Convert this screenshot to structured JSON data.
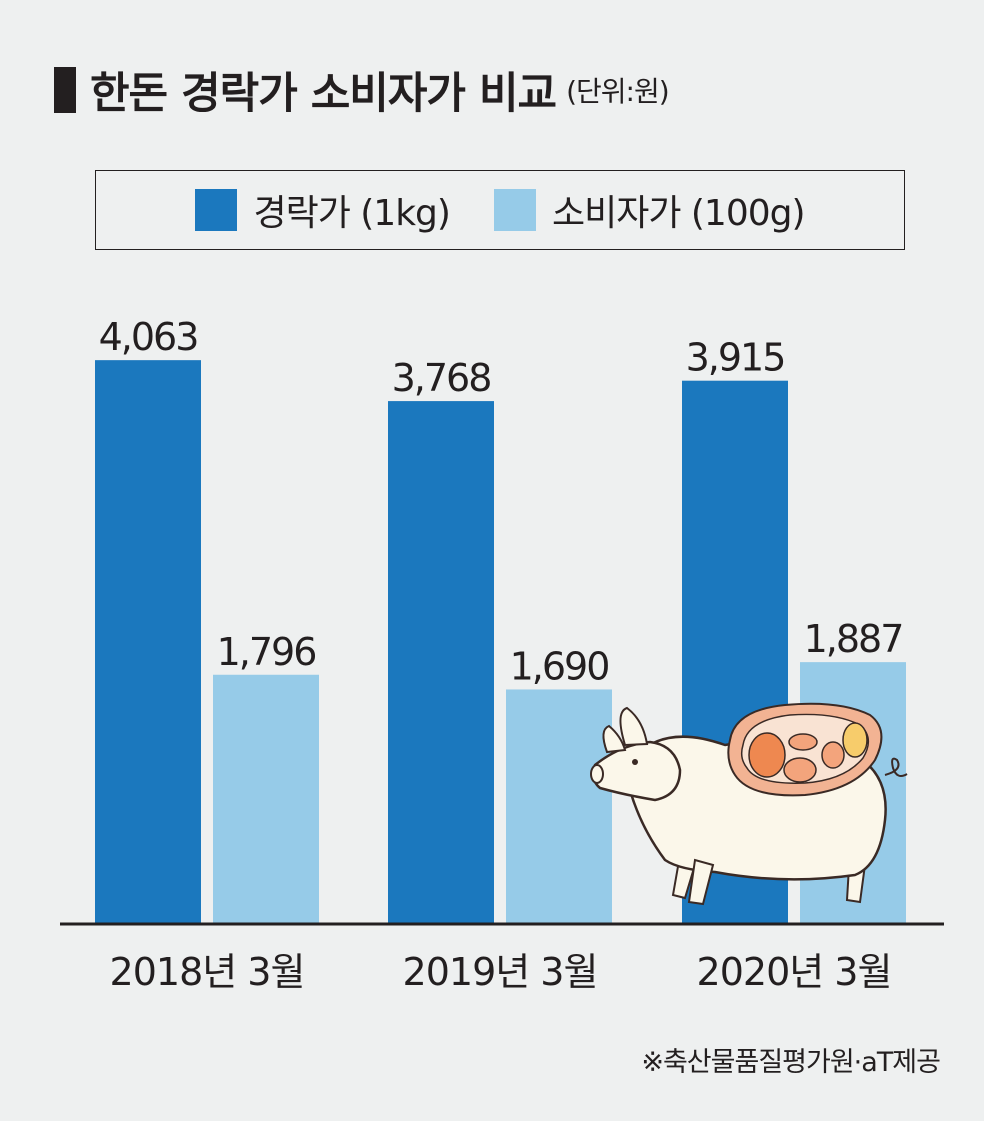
{
  "header": {
    "title": "한돈 경락가 소비자가 비교",
    "unit": "(단위:원)"
  },
  "source": "※축산물품질평가원·aT제공",
  "colors": {
    "auction": "#1b78be",
    "consumer": "#96cbe8",
    "axis": "#231f20"
  },
  "chart_data": {
    "type": "bar",
    "title": "한돈 경락가 소비자가 비교",
    "unit": "(단위:원)",
    "categories": [
      "2018년 3월",
      "2019년 3월",
      "2020년 3월"
    ],
    "series": [
      {
        "name": "경락가 (1kg)",
        "values": [
          4063,
          3768,
          3915
        ],
        "labels": [
          "4,063",
          "3,768",
          "3,915"
        ]
      },
      {
        "name": "소비자가 (100g)",
        "values": [
          1796,
          1690,
          1887
        ],
        "labels": [
          "1,796",
          "1,690",
          "1,887"
        ]
      }
    ],
    "ylim": [
      0,
      4900
    ],
    "grid": false,
    "legend": "top"
  }
}
